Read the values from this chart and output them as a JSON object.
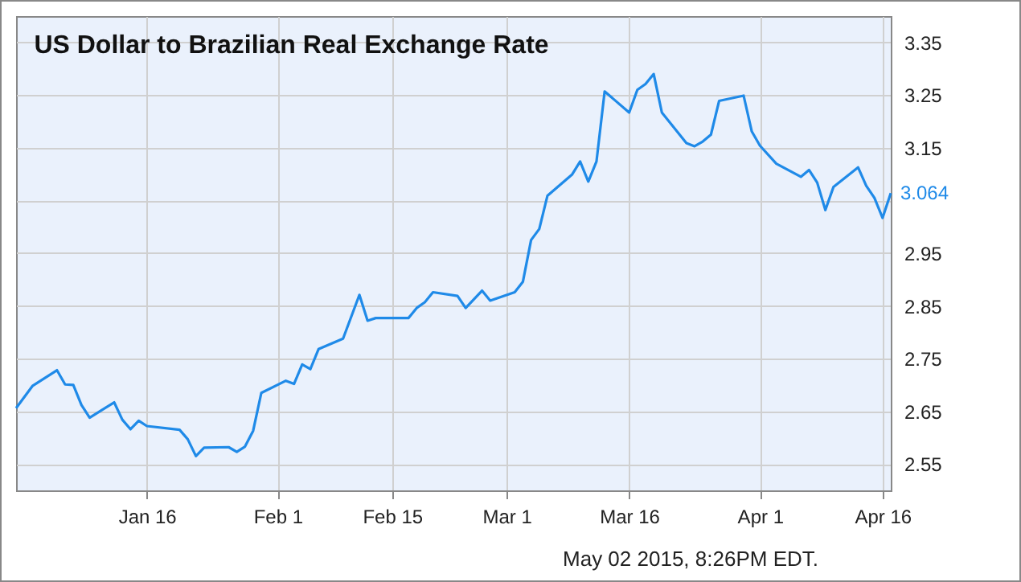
{
  "chart_data": {
    "type": "line",
    "title": "US Dollar to Brazilian Real Exchange Rate",
    "x": [
      "2014-12-31",
      "2015-01-02",
      "2015-01-05",
      "2015-01-06",
      "2015-01-07",
      "2015-01-08",
      "2015-01-09",
      "2015-01-12",
      "2015-01-13",
      "2015-01-14",
      "2015-01-15",
      "2015-01-16",
      "2015-01-20",
      "2015-01-21",
      "2015-01-22",
      "2015-01-23",
      "2015-01-26",
      "2015-01-27",
      "2015-01-28",
      "2015-01-29",
      "2015-01-30",
      "2015-02-02",
      "2015-02-03",
      "2015-02-04",
      "2015-02-05",
      "2015-02-06",
      "2015-02-09",
      "2015-02-11",
      "2015-02-12",
      "2015-02-13",
      "2015-02-17",
      "2015-02-18",
      "2015-02-19",
      "2015-02-20",
      "2015-02-23",
      "2015-02-24",
      "2015-02-26",
      "2015-02-27",
      "2015-03-02",
      "2015-03-03",
      "2015-03-04",
      "2015-03-05",
      "2015-03-06",
      "2015-03-09",
      "2015-03-10",
      "2015-03-11",
      "2015-03-12",
      "2015-03-13",
      "2015-03-16",
      "2015-03-17",
      "2015-03-18",
      "2015-03-19",
      "2015-03-20",
      "2015-03-23",
      "2015-03-24",
      "2015-03-25",
      "2015-03-26",
      "2015-03-27",
      "2015-03-30",
      "2015-03-31",
      "2015-04-01",
      "2015-04-03",
      "2015-04-06",
      "2015-04-07",
      "2015-04-08",
      "2015-04-09",
      "2015-04-10",
      "2015-04-13",
      "2015-04-14",
      "2015-04-15",
      "2015-04-16",
      "2015-04-17"
    ],
    "series": [
      {
        "color": "#1f8ae8",
        "values": [
          2.656,
          2.698,
          2.728,
          2.701,
          2.7,
          2.662,
          2.638,
          2.667,
          2.634,
          2.616,
          2.632,
          2.622,
          2.615,
          2.597,
          2.565,
          2.581,
          2.582,
          2.573,
          2.583,
          2.613,
          2.685,
          2.708,
          2.702,
          2.739,
          2.73,
          2.768,
          2.788,
          2.871,
          2.822,
          2.827,
          2.827,
          2.846,
          2.857,
          2.876,
          2.869,
          2.846,
          2.879,
          2.86,
          2.876,
          2.896,
          2.975,
          2.996,
          3.059,
          3.099,
          3.124,
          3.086,
          3.124,
          3.257,
          3.217,
          3.26,
          3.271,
          3.29,
          3.217,
          3.159,
          3.153,
          3.162,
          3.175,
          3.239,
          3.249,
          3.181,
          3.154,
          3.12,
          3.095,
          3.108,
          3.084,
          3.032,
          3.076,
          3.113,
          3.078,
          3.055,
          3.017,
          3.064
        ],
        "value_labels": [
          null,
          null,
          null,
          null,
          null,
          null,
          null,
          null,
          null,
          null,
          null,
          null,
          null,
          null,
          null,
          null,
          null,
          null,
          null,
          null,
          null,
          null,
          null,
          null,
          null,
          null,
          null,
          null,
          null,
          null,
          null,
          null,
          null,
          null,
          null,
          null,
          null,
          null,
          null,
          null,
          null,
          null,
          null,
          null,
          null,
          null,
          null,
          null,
          null,
          null,
          null,
          null,
          null,
          null,
          null,
          null,
          null,
          null,
          null,
          null,
          null,
          null,
          null,
          null,
          null,
          null,
          null,
          null,
          null,
          null,
          null,
          "3.064"
        ]
      }
    ],
    "xlim": [
      "2014-12-31",
      "2015-04-17"
    ],
    "xticks": [
      {
        "value": "2015-01-16",
        "label": "Jan 16"
      },
      {
        "value": "2015-02-01",
        "label": "Feb 1"
      },
      {
        "value": "2015-02-15",
        "label": "Feb 15"
      },
      {
        "value": "2015-03-01",
        "label": "Mar 1"
      },
      {
        "value": "2015-03-16",
        "label": "Mar 16"
      },
      {
        "value": "2015-04-01",
        "label": "Apr 1"
      },
      {
        "value": "2015-04-16",
        "label": "Apr 16"
      }
    ],
    "ylim": [
      2.5,
      3.4
    ],
    "yticks": [
      2.55,
      2.65,
      2.75,
      2.85,
      2.95,
      {
        "value": 3.05,
        "label": null
      },
      3.15,
      3.25,
      3.35
    ],
    "grid": true,
    "legend": false,
    "marker": "none",
    "line_style": "solid",
    "annotations": [
      "May 02 2015, 8:26PM EDT."
    ]
  }
}
